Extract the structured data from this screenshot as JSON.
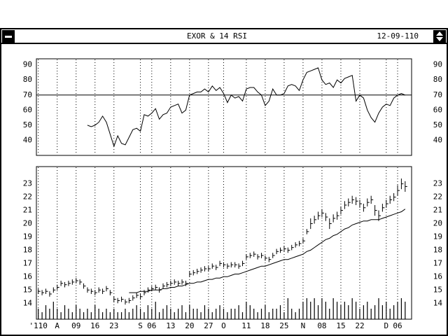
{
  "window": {
    "title": "EXOR & 14 RSI",
    "date": "12-09-110"
  },
  "chart_data": [
    {
      "type": "line",
      "xlim": [
        -0.5,
        98.7
      ],
      "ylim": [
        30,
        94
      ],
      "yticks": [
        40,
        50,
        60,
        70,
        80,
        90
      ],
      "reference_line": 70,
      "color": "#000000",
      "grid_x": true,
      "values": [
        null,
        null,
        null,
        null,
        null,
        null,
        null,
        null,
        null,
        null,
        null,
        null,
        null,
        50,
        49,
        50,
        52,
        56,
        52,
        44,
        36,
        43,
        38,
        37,
        42,
        47,
        48,
        46,
        57,
        56,
        58,
        61,
        54,
        57,
        58,
        62,
        63,
        64,
        58,
        60,
        70,
        71,
        72,
        72,
        74,
        72,
        76,
        73,
        75,
        71,
        65,
        70,
        68,
        69,
        66,
        74,
        75,
        75,
        72,
        70,
        63,
        66,
        74,
        70,
        70,
        71,
        76,
        77,
        76,
        73,
        80,
        85,
        86,
        87,
        88,
        80,
        77,
        78,
        75,
        80,
        78,
        81,
        82,
        83,
        66,
        70,
        68,
        60,
        55,
        52,
        58,
        62,
        64,
        63,
        68,
        70,
        71,
        70
      ]
    },
    {
      "type": "ohlc",
      "xlim": [
        -0.5,
        98.7
      ],
      "ylim": [
        12.8,
        24.3
      ],
      "yticks": [
        14,
        15,
        16,
        17,
        18,
        19,
        20,
        21,
        22,
        23
      ],
      "color": "#000000",
      "grid_x": true,
      "xticks": [
        {
          "value": 0,
          "label": "'110"
        },
        {
          "value": 5,
          "label": "A"
        },
        {
          "value": 10,
          "label": "09"
        },
        {
          "value": 15,
          "label": "16"
        },
        {
          "value": 20,
          "label": "23"
        },
        {
          "value": 27,
          "label": "S"
        },
        {
          "value": 30,
          "label": "06"
        },
        {
          "value": 35,
          "label": "13"
        },
        {
          "value": 40,
          "label": "20"
        },
        {
          "value": 45,
          "label": "27"
        },
        {
          "value": 49,
          "label": "O"
        },
        {
          "value": 55,
          "label": "11"
        },
        {
          "value": 60,
          "label": "18"
        },
        {
          "value": 65,
          "label": "25"
        },
        {
          "value": 70,
          "label": "N"
        },
        {
          "value": 75,
          "label": "08"
        },
        {
          "value": 80,
          "label": "15"
        },
        {
          "value": 85,
          "label": "22"
        },
        {
          "value": 92,
          "label": "D"
        },
        {
          "value": 95,
          "label": "06"
        }
      ],
      "close": [
        14.9,
        14.8,
        14.9,
        14.7,
        15.0,
        15.2,
        15.5,
        15.4,
        15.5,
        15.6,
        15.7,
        15.6,
        15.3,
        15.0,
        14.9,
        14.8,
        15.0,
        14.9,
        15.1,
        14.8,
        14.3,
        14.2,
        14.3,
        14.1,
        14.2,
        14.4,
        14.6,
        14.5,
        14.8,
        15.0,
        15.1,
        15.2,
        15.0,
        15.3,
        15.4,
        15.5,
        15.6,
        15.5,
        15.6,
        15.5,
        16.2,
        16.3,
        16.4,
        16.5,
        16.6,
        16.6,
        16.8,
        16.7,
        17.0,
        16.9,
        16.8,
        16.9,
        16.9,
        16.8,
        17.0,
        17.5,
        17.6,
        17.7,
        17.5,
        17.6,
        17.4,
        17.3,
        17.6,
        17.9,
        18.0,
        18.1,
        18.0,
        18.2,
        18.4,
        18.5,
        18.7,
        19.4,
        20.0,
        20.3,
        20.6,
        20.8,
        20.5,
        20.0,
        20.4,
        20.6,
        21.0,
        21.4,
        21.6,
        21.8,
        21.7,
        21.5,
        21.2,
        21.6,
        21.8,
        21.0,
        20.6,
        21.2,
        21.5,
        21.8,
        22.0,
        22.5,
        23.0,
        22.8
      ],
      "high": [
        15.1,
        15.0,
        15.1,
        14.9,
        15.2,
        15.4,
        15.7,
        15.6,
        15.7,
        15.8,
        15.9,
        15.8,
        15.5,
        15.2,
        15.1,
        15.0,
        15.2,
        15.1,
        15.3,
        15.0,
        14.5,
        14.4,
        14.5,
        14.3,
        14.4,
        14.6,
        14.8,
        14.7,
        15.0,
        15.2,
        15.3,
        15.4,
        15.2,
        15.5,
        15.6,
        15.7,
        15.8,
        15.7,
        15.8,
        15.7,
        16.4,
        16.5,
        16.6,
        16.7,
        16.8,
        16.8,
        17.0,
        16.9,
        17.2,
        17.1,
        17.0,
        17.1,
        17.1,
        17.0,
        17.2,
        17.7,
        17.8,
        17.9,
        17.7,
        17.8,
        17.6,
        17.5,
        17.8,
        18.1,
        18.2,
        18.3,
        18.2,
        18.4,
        18.6,
        18.7,
        18.9,
        19.6,
        20.4,
        20.6,
        20.9,
        21.1,
        20.8,
        20.4,
        20.7,
        20.9,
        21.3,
        21.7,
        21.9,
        22.1,
        22.0,
        21.8,
        21.5,
        21.9,
        22.1,
        21.4,
        21.0,
        21.5,
        21.8,
        22.1,
        22.3,
        22.9,
        23.4,
        23.2
      ],
      "low": [
        14.7,
        14.6,
        14.7,
        14.5,
        14.8,
        15.0,
        15.3,
        15.2,
        15.3,
        15.4,
        15.5,
        15.4,
        15.1,
        14.8,
        14.7,
        14.6,
        14.8,
        14.7,
        14.9,
        14.6,
        14.1,
        14.0,
        14.1,
        13.9,
        14.0,
        14.2,
        14.4,
        14.3,
        14.6,
        14.8,
        14.9,
        15.0,
        14.8,
        15.1,
        15.2,
        15.3,
        15.4,
        15.3,
        15.4,
        15.3,
        16.0,
        16.1,
        16.2,
        16.3,
        16.4,
        16.4,
        16.6,
        16.5,
        16.8,
        16.7,
        16.6,
        16.7,
        16.7,
        16.6,
        16.8,
        17.3,
        17.4,
        17.5,
        17.3,
        17.4,
        17.2,
        17.1,
        17.4,
        17.7,
        17.8,
        17.9,
        17.8,
        18.0,
        18.2,
        18.3,
        18.5,
        19.2,
        19.6,
        20.0,
        20.3,
        20.5,
        20.2,
        19.6,
        20.1,
        20.3,
        20.7,
        21.1,
        21.3,
        21.5,
        21.4,
        21.2,
        20.9,
        21.3,
        21.5,
        20.6,
        20.2,
        20.9,
        21.2,
        21.5,
        21.7,
        22.1,
        22.6,
        22.4
      ],
      "ma": [
        null,
        null,
        null,
        null,
        null,
        null,
        null,
        null,
        null,
        null,
        null,
        null,
        null,
        null,
        null,
        null,
        null,
        null,
        null,
        null,
        null,
        null,
        null,
        null,
        14.8,
        14.8,
        14.8,
        14.9,
        14.9,
        14.9,
        15.0,
        15.0,
        15.0,
        15.1,
        15.1,
        15.2,
        15.2,
        15.3,
        15.3,
        15.4,
        15.5,
        15.5,
        15.6,
        15.6,
        15.7,
        15.8,
        15.8,
        15.9,
        15.9,
        16.0,
        16.0,
        16.1,
        16.2,
        16.2,
        16.3,
        16.4,
        16.5,
        16.6,
        16.7,
        16.8,
        16.8,
        16.9,
        17.0,
        17.1,
        17.2,
        17.3,
        17.3,
        17.4,
        17.5,
        17.6,
        17.7,
        17.9,
        18.0,
        18.2,
        18.4,
        18.6,
        18.8,
        18.9,
        19.1,
        19.2,
        19.4,
        19.6,
        19.7,
        19.9,
        20.0,
        20.1,
        20.2,
        20.2,
        20.3,
        20.3,
        20.3,
        20.4,
        20.5,
        20.6,
        20.7,
        20.8,
        20.9,
        21.1
      ],
      "volume_ylim": [
        0,
        10
      ],
      "volume": [
        3,
        2,
        4,
        3,
        5,
        3,
        2,
        4,
        3,
        2,
        4,
        3,
        2,
        3,
        2,
        4,
        3,
        2,
        3,
        2,
        3,
        2,
        2,
        3,
        2,
        3,
        4,
        3,
        2,
        4,
        3,
        5,
        2,
        3,
        4,
        3,
        2,
        3,
        4,
        2,
        4,
        3,
        3,
        2,
        4,
        3,
        2,
        3,
        4,
        3,
        2,
        3,
        3,
        4,
        2,
        5,
        4,
        3,
        2,
        3,
        4,
        2,
        3,
        3,
        4,
        2,
        6,
        3,
        2,
        3,
        5,
        6,
        5,
        6,
        4,
        6,
        5,
        3,
        6,
        5,
        4,
        5,
        4,
        6,
        5,
        3,
        4,
        5,
        3,
        4,
        6,
        4,
        5,
        3,
        4,
        5,
        6,
        5
      ]
    }
  ]
}
